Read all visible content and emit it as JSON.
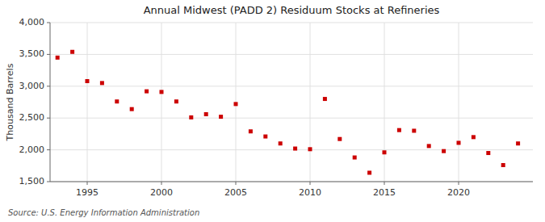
{
  "chart_data": {
    "type": "scatter",
    "title": "Annual Midwest (PADD 2) Residuum Stocks at Refineries",
    "y_label": "Thousand Barrels",
    "annotations": [
      "Source: U.S. Energy Information Administration"
    ],
    "x": [
      1993,
      1994,
      1995,
      1996,
      1997,
      1998,
      1999,
      2000,
      2001,
      2002,
      2003,
      2004,
      2005,
      2006,
      2007,
      2008,
      2009,
      2010,
      2011,
      2012,
      2013,
      2014,
      2015,
      2016,
      2017,
      2018,
      2019,
      2020,
      2021,
      2022,
      2023,
      2024
    ],
    "values": [
      3450,
      3540,
      3080,
      3050,
      2760,
      2640,
      2920,
      2910,
      2760,
      2510,
      2560,
      2520,
      2720,
      2290,
      2210,
      2100,
      2020,
      2010,
      2800,
      2170,
      1880,
      1640,
      1960,
      2310,
      2300,
      2060,
      1980,
      2110,
      2200,
      1950,
      1760,
      2100
    ],
    "color": "#cc0000",
    "marker": "square",
    "xlim": [
      1992.5,
      2025.0
    ],
    "ylim": [
      1500,
      4000
    ],
    "xticks": [
      1995,
      2000,
      2005,
      2010,
      2015,
      2020
    ],
    "yticks": [
      {
        "value": 1500,
        "label": "1,500"
      },
      {
        "value": 2000,
        "label": "2,000"
      },
      {
        "value": 2500,
        "label": "2,500"
      },
      {
        "value": 3000,
        "label": "3,000"
      },
      {
        "value": 3500,
        "label": "3,500"
      },
      {
        "value": 4000,
        "label": "4,000"
      }
    ],
    "grid": true
  }
}
